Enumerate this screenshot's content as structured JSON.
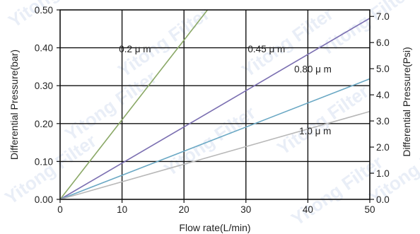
{
  "chart_data": {
    "type": "line",
    "title": "",
    "xlabel": "Flow rate(L/min)",
    "ylabel": "Differential Pressure(bar)",
    "y2label": "Differential Pressure(Psi)",
    "xlim": [
      0,
      50
    ],
    "ylim": [
      0,
      0.5
    ],
    "y2lim": [
      0,
      7.25
    ],
    "x_ticks": [
      "0",
      "10",
      "20",
      "30",
      "40",
      "50"
    ],
    "y_ticks": [
      "0.00",
      "0.10",
      "0.20",
      "0.30",
      "0.40",
      "0.50"
    ],
    "y2_ticks": [
      "0.0",
      "1.0",
      "2.0",
      "3.0",
      "4.0",
      "5.0",
      "6.0",
      "7.0"
    ],
    "y2_tick_values": [
      0,
      1,
      2,
      3,
      4,
      5,
      6,
      7
    ],
    "grid": true,
    "series": [
      {
        "name": "0.2 μ m",
        "color": "#8aa866",
        "x": [
          0,
          23.8
        ],
        "y": [
          0,
          0.5
        ],
        "label_at": [
          9.5,
          0.388
        ]
      },
      {
        "name": "0.45 μ m",
        "color": "#7b6fb1",
        "x": [
          0,
          50
        ],
        "y": [
          0,
          0.478
        ],
        "label_at": [
          30.3,
          0.388
        ]
      },
      {
        "name": "0.80 μ m",
        "color": "#6aa8c4",
        "x": [
          0,
          50
        ],
        "y": [
          0,
          0.318
        ],
        "label_at": [
          37.8,
          0.335
        ]
      },
      {
        "name": "1.0 μ m",
        "color": "#b8b8b8",
        "x": [
          0,
          50
        ],
        "y": [
          0,
          0.232
        ],
        "label_at": [
          38.6,
          0.172
        ]
      }
    ]
  },
  "watermark": "Yitong Filter"
}
